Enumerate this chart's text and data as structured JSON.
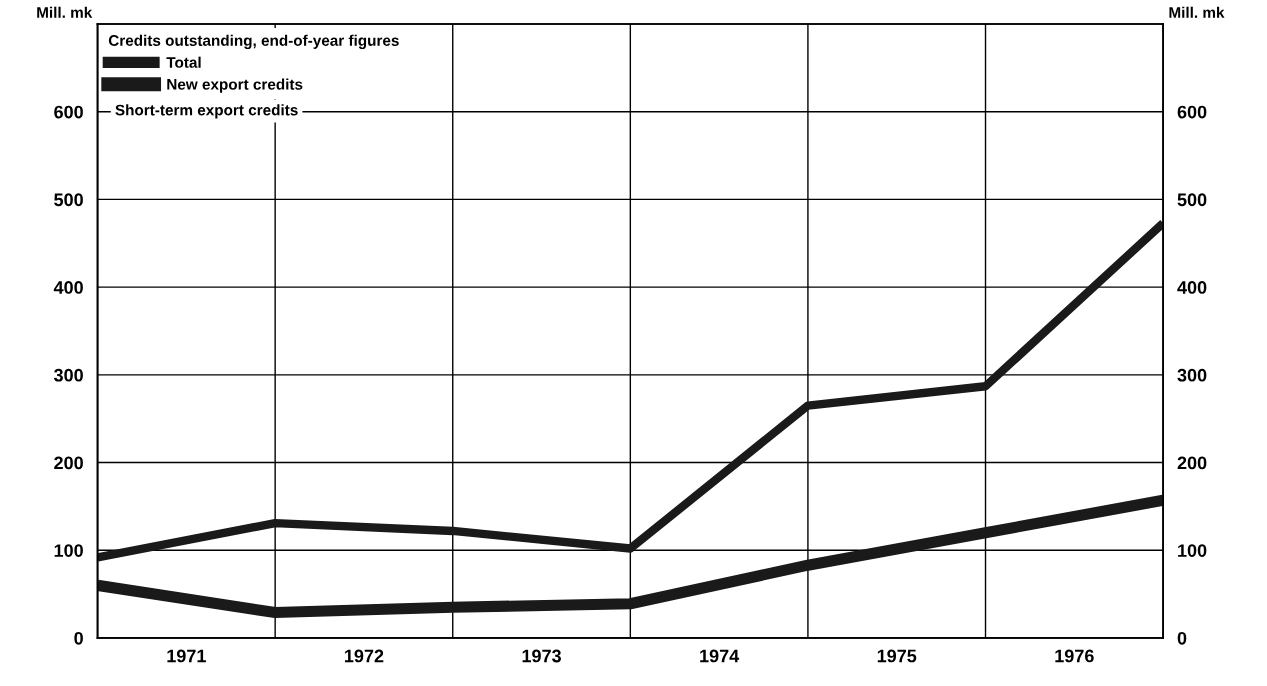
{
  "chart_data": {
    "type": "line",
    "legend_title": "Credits outstanding, end-of-year figures",
    "ylabel": "Mill. mk",
    "y2label": "Mill. mk",
    "x": [
      1971,
      1972,
      1973,
      1974,
      1975,
      1976,
      1977
    ],
    "series": [
      {
        "name": "Total",
        "color": "#1a1a1a",
        "values": [
          92,
          131,
          122,
          102,
          265,
          287,
          473
        ]
      },
      {
        "name": "New export credits",
        "color": "#1a1a1a",
        "values": [
          60,
          29,
          35,
          39,
          83,
          120,
          157
        ]
      }
    ],
    "annotations": [
      "Short-term export credits"
    ],
    "xlim": [
      1971,
      1977
    ],
    "xticks": [
      {
        "value": 1972,
        "label": null
      },
      {
        "value": 1973,
        "label": null
      },
      {
        "value": 1974,
        "label": null
      },
      {
        "value": 1975,
        "label": null
      },
      {
        "value": 1976,
        "label": null
      },
      {
        "value": 1971.5,
        "label": "1971"
      },
      {
        "value": 1972.5,
        "label": "1972"
      },
      {
        "value": 1973.5,
        "label": "1973"
      },
      {
        "value": 1974.5,
        "label": "1974"
      },
      {
        "value": 1975.5,
        "label": "1975"
      },
      {
        "value": 1976.5,
        "label": "1976"
      }
    ],
    "ylim": [
      0,
      700
    ],
    "yticks": [
      0,
      100,
      200,
      300,
      400,
      500,
      600
    ],
    "y2lim": [
      0,
      700
    ],
    "y2ticks": [
      0,
      100,
      200,
      300,
      400,
      500,
      600
    ],
    "grid": true,
    "legend": "top left",
    "marker": "none",
    "line_style": "solid"
  }
}
